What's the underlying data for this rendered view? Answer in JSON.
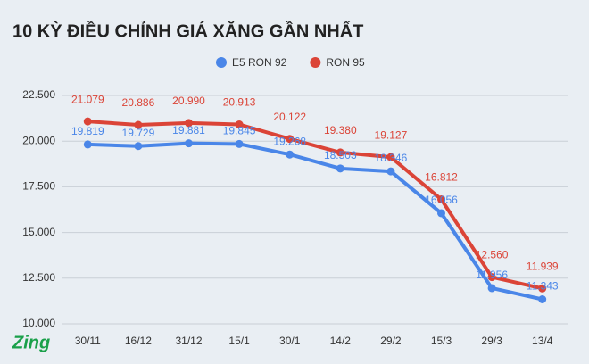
{
  "chart_data": {
    "type": "line",
    "title": "10 KỲ ĐIỀU CHỈNH GIÁ XĂNG GẦN NHẤT",
    "categories": [
      "30/11",
      "16/12",
      "31/12",
      "15/1",
      "30/1",
      "14/2",
      "29/2",
      "15/3",
      "29/3",
      "13/4"
    ],
    "series": [
      {
        "name": "E5 RON 92",
        "color": "#4a86e8",
        "values": [
          19819,
          19729,
          19881,
          19845,
          19268,
          18503,
          18346,
          16056,
          11956,
          11343
        ],
        "value_labels": [
          "19.819",
          "19.729",
          "19.881",
          "19.845",
          "19.268",
          "18.503",
          "18.346",
          "16.056",
          "11.956",
          "11.343"
        ]
      },
      {
        "name": "RON 95",
        "color": "#db4437",
        "values": [
          21079,
          20886,
          20990,
          20913,
          20122,
          19380,
          19127,
          16812,
          12560,
          11939
        ],
        "value_labels": [
          "21.079",
          "20.886",
          "20.990",
          "20.913",
          "20.122",
          "19.380",
          "19.127",
          "16.812",
          "12.560",
          "11.939"
        ]
      }
    ],
    "ylim": [
      10000,
      22500
    ],
    "yticks": [
      {
        "value": 10000,
        "label": "10.000"
      },
      {
        "value": 12500,
        "label": "12.500"
      },
      {
        "value": 15000,
        "label": "15.000"
      },
      {
        "value": 17500,
        "label": "17.500"
      },
      {
        "value": 20000,
        "label": "20.000"
      },
      {
        "value": 22500,
        "label": "22.500"
      }
    ],
    "grid": true,
    "legend": "top"
  },
  "logo": "Zing"
}
